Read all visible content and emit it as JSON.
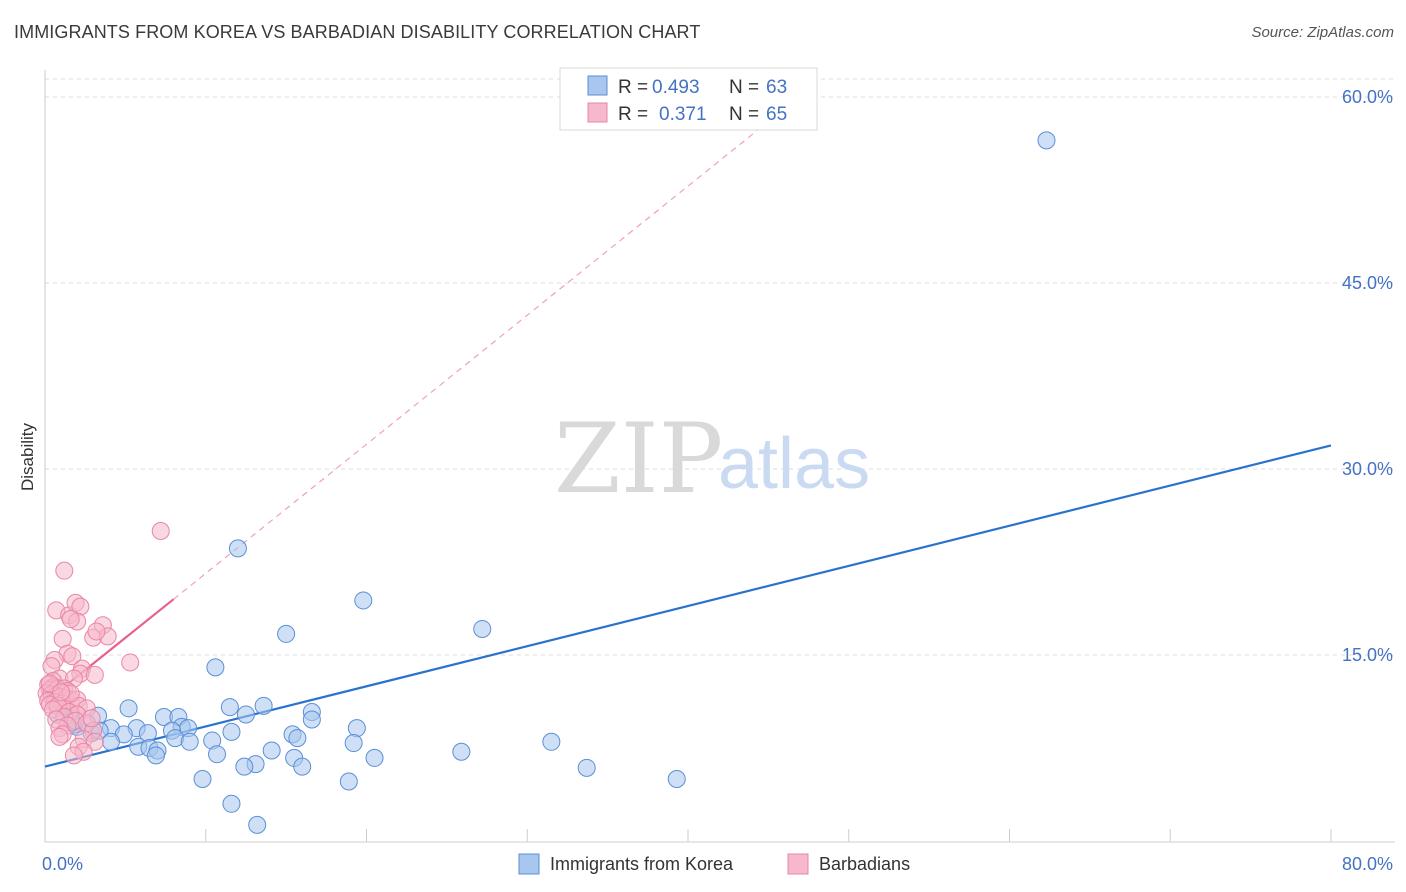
{
  "title": "IMMIGRANTS FROM KOREA VS BARBADIAN DISABILITY CORRELATION CHART",
  "source": "Source: ZipAtlas.com",
  "watermark": {
    "zip": "ZIP",
    "atlas": "atlas"
  },
  "colors": {
    "blue_fill": "#a8c6ee",
    "blue_stroke": "#5b8fd6",
    "blue_line": "#2a72d0",
    "pink_fill": "#f6b8cb",
    "pink_stroke": "#e986a6",
    "pink_line": "#e8608a",
    "tick": "#4472c4",
    "grid": "#dddddd"
  },
  "chart_data": {
    "type": "scatter",
    "title": "IMMIGRANTS FROM KOREA VS BARBADIAN DISABILITY CORRELATION CHART",
    "xlabel": "",
    "ylabel": "Disability",
    "xlim": [
      0,
      80
    ],
    "ylim": [
      0,
      62
    ],
    "x_tick_labels": [
      "0.0%",
      "80.0%"
    ],
    "y_ticks": [
      15,
      30,
      45,
      60
    ],
    "y_tick_labels": [
      "15.0%",
      "30.0%",
      "45.0%",
      "60.0%"
    ],
    "legend": {
      "rows": [
        {
          "r_label": "R =",
          "r_value": "0.493",
          "n_label": "N =",
          "n_value": "63"
        },
        {
          "r_label": "R =",
          "r_value": "0.371",
          "n_label": "N =",
          "n_value": "65"
        }
      ]
    },
    "series": [
      {
        "name": "Immigrants from Korea",
        "color": "#a8c6ee",
        "trend": {
          "x": [
            0,
            80
          ],
          "y": [
            6.0,
            31.9
          ]
        },
        "points": [
          [
            62.3,
            56.5
          ],
          [
            12.0,
            23.6
          ],
          [
            19.8,
            19.4
          ],
          [
            27.2,
            17.1
          ],
          [
            15.0,
            16.7
          ],
          [
            10.6,
            14.0
          ],
          [
            13.6,
            10.9
          ],
          [
            11.5,
            10.8
          ],
          [
            5.2,
            10.7
          ],
          [
            7.4,
            10.0
          ],
          [
            8.3,
            10.0
          ],
          [
            16.6,
            10.4
          ],
          [
            16.6,
            9.8
          ],
          [
            3.3,
            10.1
          ],
          [
            1.6,
            10.0
          ],
          [
            1.8,
            9.4
          ],
          [
            2.6,
            9.5
          ],
          [
            4.1,
            9.1
          ],
          [
            5.7,
            9.1
          ],
          [
            8.5,
            9.2
          ],
          [
            8.9,
            9.1
          ],
          [
            19.4,
            9.1
          ],
          [
            7.9,
            8.9
          ],
          [
            6.4,
            8.7
          ],
          [
            11.6,
            8.8
          ],
          [
            4.9,
            8.6
          ],
          [
            2.9,
            8.7
          ],
          [
            3.4,
            8.9
          ],
          [
            2.0,
            9.2
          ],
          [
            15.4,
            8.6
          ],
          [
            15.7,
            8.3
          ],
          [
            8.1,
            8.3
          ],
          [
            9.0,
            8.0
          ],
          [
            10.4,
            8.1
          ],
          [
            4.1,
            8.0
          ],
          [
            5.8,
            7.6
          ],
          [
            6.5,
            7.5
          ],
          [
            7.0,
            7.3
          ],
          [
            14.1,
            7.3
          ],
          [
            10.7,
            7.0
          ],
          [
            6.9,
            6.9
          ],
          [
            15.5,
            6.7
          ],
          [
            19.2,
            7.9
          ],
          [
            20.5,
            6.7
          ],
          [
            25.9,
            7.2
          ],
          [
            31.5,
            8.0
          ],
          [
            13.1,
            6.2
          ],
          [
            12.4,
            6.0
          ],
          [
            16.0,
            6.0
          ],
          [
            33.7,
            5.9
          ],
          [
            9.8,
            5.0
          ],
          [
            18.9,
            4.8
          ],
          [
            39.3,
            5.0
          ],
          [
            11.6,
            3.0
          ],
          [
            13.2,
            1.3
          ],
          [
            1.0,
            11.7
          ],
          [
            1.2,
            10.9
          ],
          [
            0.8,
            10.2
          ],
          [
            1.7,
            9.6
          ],
          [
            1.0,
            11.2
          ],
          [
            0.5,
            12.0
          ],
          [
            0.7,
            12.4
          ],
          [
            12.5,
            10.2
          ]
        ]
      },
      {
        "name": "Barbadians",
        "color": "#f6b8cb",
        "trend": {
          "x": [
            0,
            8.0
          ],
          "y": [
            11.2,
            19.5
          ],
          "dashed_to": {
            "x": [
              8.0,
              44.5
            ],
            "y": [
              19.5,
              57.5
            ]
          }
        },
        "points": [
          [
            7.2,
            25.0
          ],
          [
            1.2,
            21.8
          ],
          [
            0.7,
            18.6
          ],
          [
            1.5,
            18.2
          ],
          [
            1.9,
            19.2
          ],
          [
            2.2,
            18.9
          ],
          [
            2.0,
            17.7
          ],
          [
            1.6,
            17.9
          ],
          [
            3.6,
            17.4
          ],
          [
            3.0,
            16.4
          ],
          [
            3.9,
            16.5
          ],
          [
            3.2,
            16.9
          ],
          [
            1.1,
            16.3
          ],
          [
            1.4,
            15.1
          ],
          [
            1.7,
            14.9
          ],
          [
            5.3,
            14.4
          ],
          [
            0.6,
            14.6
          ],
          [
            0.4,
            14.1
          ],
          [
            2.3,
            13.9
          ],
          [
            2.2,
            13.5
          ],
          [
            3.1,
            13.4
          ],
          [
            0.9,
            13.1
          ],
          [
            1.8,
            13.1
          ],
          [
            0.5,
            12.9
          ],
          [
            0.2,
            12.6
          ],
          [
            0.5,
            12.4
          ],
          [
            0.3,
            12.2
          ],
          [
            0.8,
            12.3
          ],
          [
            1.2,
            12.3
          ],
          [
            1.4,
            12.1
          ],
          [
            0.1,
            11.9
          ],
          [
            0.4,
            11.8
          ],
          [
            0.7,
            11.7
          ],
          [
            1.0,
            11.6
          ],
          [
            1.3,
            11.5
          ],
          [
            1.6,
            11.4
          ],
          [
            2.0,
            11.4
          ],
          [
            0.2,
            11.3
          ],
          [
            0.6,
            11.2
          ],
          [
            1.1,
            11.1
          ],
          [
            0.3,
            11.0
          ],
          [
            0.8,
            10.9
          ],
          [
            2.1,
            10.9
          ],
          [
            2.6,
            10.7
          ],
          [
            0.5,
            10.6
          ],
          [
            1.5,
            10.4
          ],
          [
            2.0,
            10.2
          ],
          [
            1.2,
            10.0
          ],
          [
            0.7,
            9.8
          ],
          [
            1.9,
            9.7
          ],
          [
            2.6,
            9.5
          ],
          [
            1.4,
            9.3
          ],
          [
            0.9,
            9.1
          ],
          [
            3.0,
            8.9
          ],
          [
            1.1,
            8.6
          ],
          [
            0.9,
            8.4
          ],
          [
            2.4,
            8.2
          ],
          [
            3.1,
            8.0
          ],
          [
            2.1,
            7.6
          ],
          [
            2.4,
            7.2
          ],
          [
            1.8,
            6.9
          ],
          [
            1.6,
            11.9
          ],
          [
            0.3,
            12.7
          ],
          [
            1.0,
            12.0
          ],
          [
            2.9,
            9.9
          ]
        ]
      }
    ]
  }
}
